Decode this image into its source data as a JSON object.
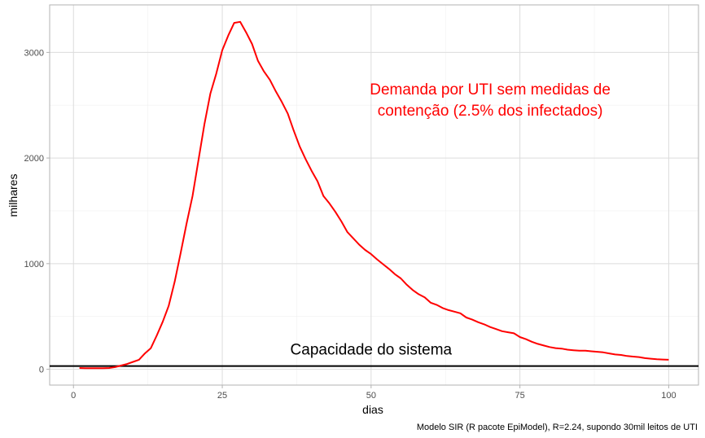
{
  "chart_data": {
    "type": "line",
    "title": "",
    "xlabel": "dias",
    "ylabel": "milhares",
    "xlim": [
      -4,
      105
    ],
    "ylim": [
      -150,
      3450
    ],
    "x_ticks": [
      0,
      25,
      50,
      75,
      100
    ],
    "y_ticks": [
      0,
      1000,
      2000,
      3000
    ],
    "x_tick_labels": [
      "0",
      "25",
      "50",
      "75",
      "100"
    ],
    "y_tick_labels": [
      "0",
      "1000",
      "2000",
      "3000"
    ],
    "grid": true,
    "series": [
      {
        "name": "Demanda por UTI",
        "color": "#ff0000",
        "x": [
          1,
          2,
          3,
          4,
          5,
          6,
          7,
          8,
          9,
          10,
          11,
          12,
          13,
          14,
          15,
          16,
          17,
          18,
          19,
          20,
          21,
          22,
          23,
          24,
          25,
          26,
          27,
          28,
          29,
          30,
          31,
          32,
          33,
          34,
          35,
          36,
          37,
          38,
          39,
          40,
          41,
          42,
          43,
          44,
          45,
          46,
          47,
          48,
          49,
          50,
          51,
          52,
          53,
          54,
          55,
          56,
          57,
          58,
          59,
          60,
          61,
          62,
          63,
          64,
          65,
          66,
          67,
          68,
          69,
          70,
          71,
          72,
          73,
          74,
          75,
          76,
          77,
          78,
          79,
          80,
          81,
          82,
          83,
          84,
          85,
          86,
          87,
          88,
          89,
          90,
          91,
          92,
          93,
          94,
          95,
          96,
          97,
          98,
          99,
          100
        ],
        "y": [
          12,
          10,
          10,
          10,
          10,
          12,
          20,
          35,
          50,
          70,
          90,
          150,
          200,
          320,
          450,
          600,
          830,
          1100,
          1380,
          1640,
          1980,
          2320,
          2610,
          2800,
          3020,
          3160,
          3280,
          3290,
          3190,
          3080,
          2920,
          2820,
          2740,
          2630,
          2530,
          2420,
          2260,
          2110,
          1990,
          1880,
          1780,
          1640,
          1570,
          1490,
          1400,
          1300,
          1240,
          1180,
          1130,
          1090,
          1040,
          995,
          950,
          900,
          860,
          800,
          750,
          710,
          680,
          630,
          610,
          580,
          560,
          545,
          530,
          490,
          470,
          445,
          425,
          400,
          380,
          360,
          350,
          340,
          305,
          285,
          260,
          240,
          225,
          210,
          200,
          195,
          185,
          180,
          175,
          175,
          170,
          165,
          160,
          150,
          140,
          135,
          125,
          120,
          115,
          105,
          100,
          95,
          92,
          90
        ]
      }
    ],
    "hline": {
      "y": 30,
      "color": "#000000"
    },
    "annotations": [
      {
        "text_lines": [
          "Demanda por UTI sem medidas de",
          "contenção (2.5% dos infectados)"
        ],
        "x": 70,
        "y": 2400,
        "color": "#ff0000"
      },
      {
        "text": "Capacidade do sistema",
        "x": 50,
        "y": 140,
        "color": "#000000"
      }
    ],
    "caption": "Modelo SIR (R pacote EpiModel), R=2.24, supondo 30mil leitos de UTI"
  }
}
